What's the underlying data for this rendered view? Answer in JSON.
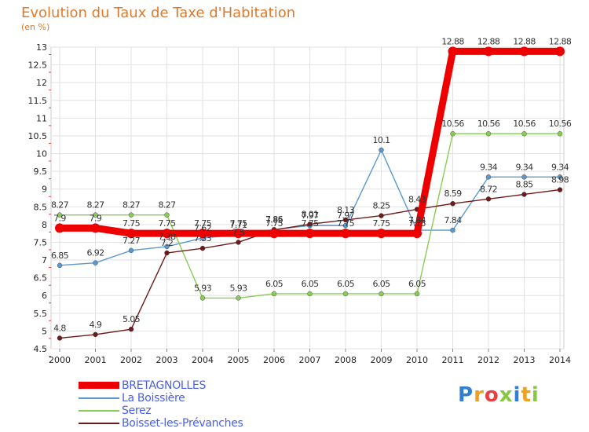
{
  "title": "Evolution du Taux de Taxe d'Habitation",
  "subtitle": "(en %)",
  "logo_text": "Proxiti",
  "chart_data": {
    "type": "line",
    "x": [
      "2000",
      "2001",
      "2002",
      "2003",
      "2004",
      "2005",
      "2006",
      "2007",
      "2008",
      "2009",
      "2010",
      "2011",
      "2012",
      "2013",
      "2014"
    ],
    "y_ticks": [
      "4.5",
      "5",
      "5.5",
      "6",
      "6.5",
      "7",
      "7.5",
      "8",
      "8.5",
      "9",
      "9.5",
      "10",
      "10.5",
      "11",
      "11.5",
      "12",
      "12.5",
      "13"
    ],
    "ylim": [
      4.5,
      13
    ],
    "grid": true,
    "legend_position": "bottom-left",
    "series": [
      {
        "name": "BRETAGNOLLES",
        "color": "#ee0000",
        "values": [
          7.9,
          7.9,
          7.75,
          7.75,
          7.75,
          7.75,
          7.75,
          7.75,
          7.75,
          7.75,
          7.75,
          12.88,
          12.88,
          12.88,
          12.88
        ],
        "labels": [
          "7.9",
          "7.9",
          "7.75",
          "7.75",
          "7.75",
          "7.75",
          "7.75",
          "7.75",
          "7.75",
          "7.75",
          "7.75",
          "12.88",
          "12.88",
          "12.88",
          "12.88"
        ]
      },
      {
        "name": "La Boissière",
        "color": "#5a98d0",
        "values": [
          6.85,
          6.92,
          7.27,
          7.38,
          7.62,
          7.71,
          7.86,
          7.97,
          7.97,
          10.1,
          7.84,
          7.84,
          9.34,
          9.34,
          9.34
        ],
        "labels": [
          "6.85",
          "6.92",
          "7.27",
          "7.38",
          "7.62",
          "7.71",
          "7.86",
          "7.97",
          "7.97",
          "10.1",
          "7.84",
          "7.84",
          "9.34",
          "9.34",
          "9.34"
        ]
      },
      {
        "name": "Serez",
        "color": "#88cc55",
        "values": [
          8.27,
          8.27,
          8.27,
          8.27,
          5.93,
          5.93,
          6.05,
          6.05,
          6.05,
          6.05,
          6.05,
          10.56,
          10.56,
          10.56,
          10.56
        ],
        "labels": [
          "8.27",
          "8.27",
          "8.27",
          "8.27",
          "5.93",
          "5.93",
          "6.05",
          "6.05",
          "6.05",
          "6.05",
          "6.05",
          "10.56",
          "10.56",
          "10.56",
          "10.56"
        ]
      },
      {
        "name": "Boisset-les-Prévanches",
        "color": "#6e1a1a",
        "values": [
          4.8,
          4.9,
          5.05,
          7.2,
          7.33,
          7.5,
          7.85,
          8.01,
          8.13,
          8.25,
          8.43,
          8.59,
          8.72,
          8.85,
          8.98
        ],
        "labels": [
          "4.8",
          "4.9",
          "5.05",
          "7.2",
          "7.33",
          "7.5",
          "7.85",
          "8.01",
          "8.13",
          "8.25",
          "8.43",
          "8.59",
          "8.72",
          "8.85",
          "8.98"
        ]
      }
    ]
  }
}
